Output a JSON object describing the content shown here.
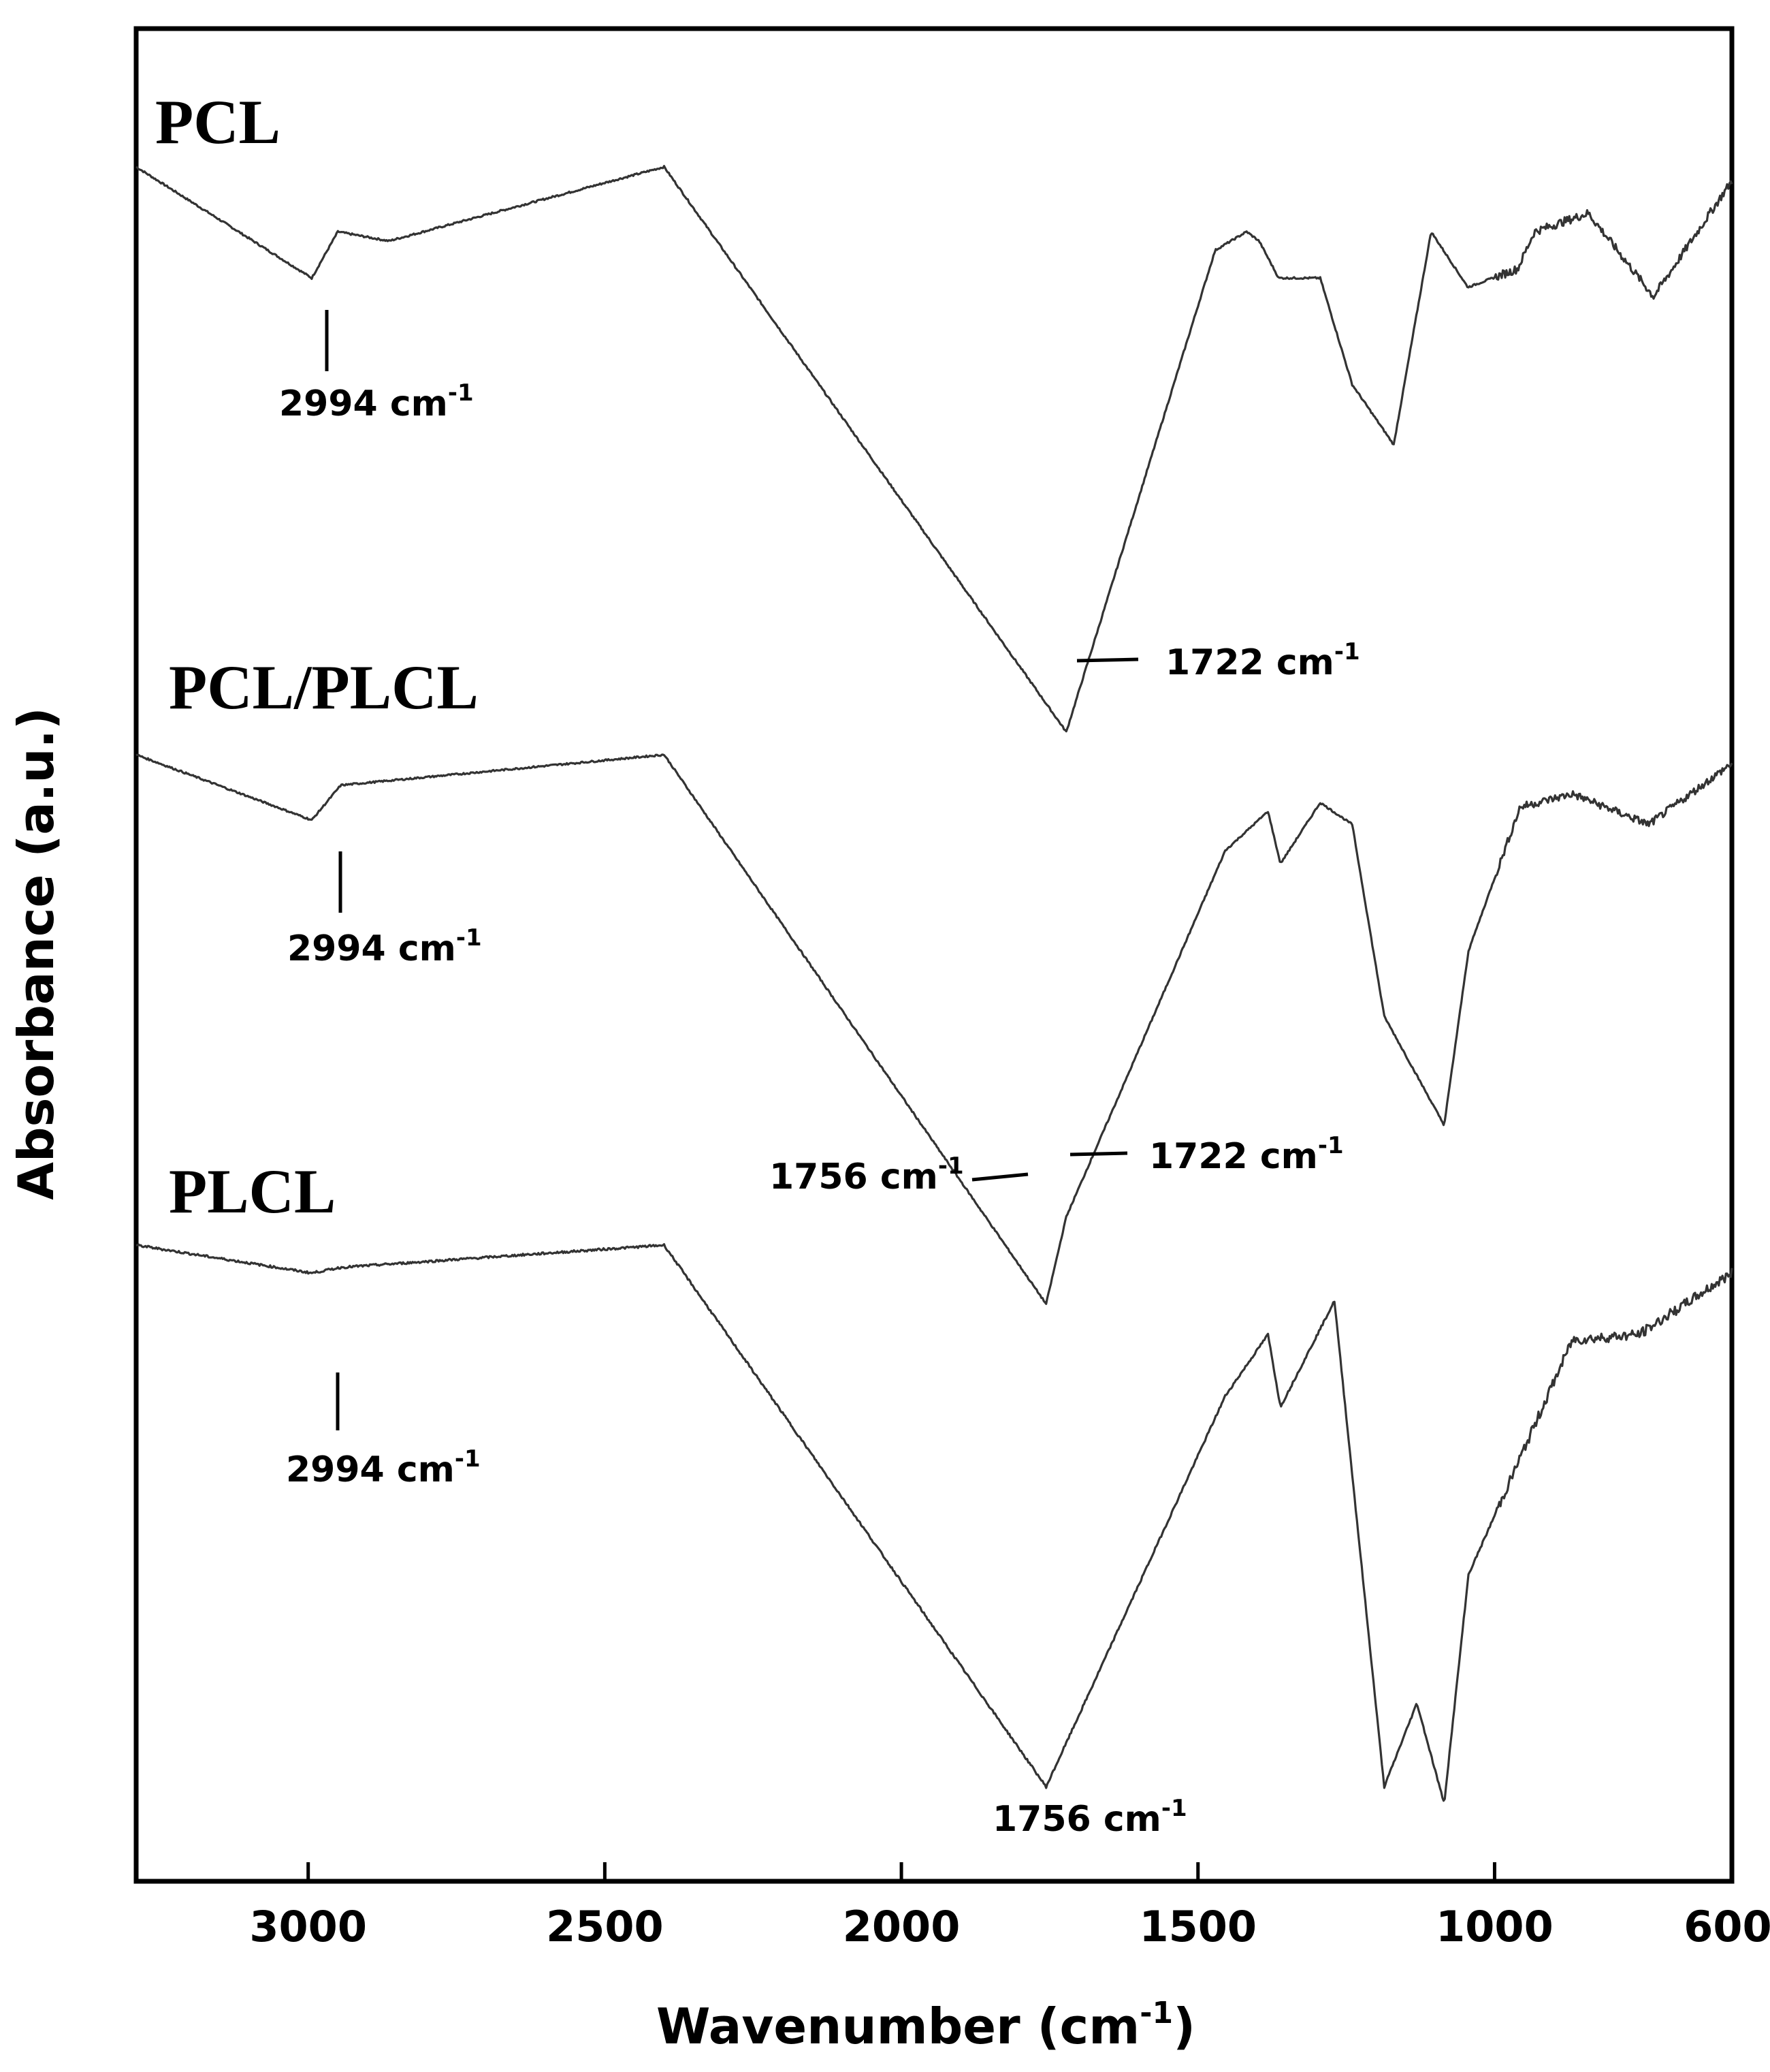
{
  "chart_data": {
    "type": "line",
    "title": "",
    "xlabel": "Wavenumber (cm",
    "xlabel_sup": "-1",
    "xlabel_close": ")",
    "ylabel": "Absorbance (a.u.)",
    "xlim": [
      3290,
      600
    ],
    "x_reversed": true,
    "xticks": [
      3000,
      2500,
      2000,
      1500,
      1000,
      600
    ],
    "xtick_labels": [
      "3000",
      "2500",
      "2000",
      "1500",
      "1000",
      "600"
    ],
    "grid": false,
    "legend": "none",
    "y_units": "arbitrary, stacked traces (absorbance bands drawn downward)",
    "series": [
      {
        "name": "PCL",
        "baseline": 1.0,
        "bands": [
          {
            "x": 3290,
            "y": 1.0
          },
          {
            "x": 2994,
            "y": 0.76
          },
          {
            "x": 2950,
            "y": 0.86
          },
          {
            "x": 2864,
            "y": 0.84
          },
          {
            "x": 2400,
            "y": 1.0
          },
          {
            "x": 1722,
            "y": -0.22
          },
          {
            "x": 1471,
            "y": 0.82
          },
          {
            "x": 1418,
            "y": 0.86
          },
          {
            "x": 1397,
            "y": 0.84
          },
          {
            "x": 1364,
            "y": 0.76
          },
          {
            "x": 1294,
            "y": 0.76
          },
          {
            "x": 1240,
            "y": 0.53
          },
          {
            "x": 1170,
            "y": 0.4
          },
          {
            "x": 1107,
            "y": 0.86
          },
          {
            "x": 1045,
            "y": 0.74
          },
          {
            "x": 961,
            "y": 0.78
          },
          {
            "x": 933,
            "y": 0.86
          },
          {
            "x": 842,
            "y": 0.9
          },
          {
            "x": 732,
            "y": 0.72
          },
          {
            "x": 600,
            "y": 0.97
          }
        ]
      },
      {
        "name": "PCL/PLCL",
        "baseline": 1.0,
        "bands": [
          {
            "x": 3290,
            "y": 1.0
          },
          {
            "x": 2994,
            "y": 0.85
          },
          {
            "x": 2945,
            "y": 0.93
          },
          {
            "x": 2400,
            "y": 1.0
          },
          {
            "x": 1756,
            "y": -0.26
          },
          {
            "x": 1722,
            "y": -0.06
          },
          {
            "x": 1454,
            "y": 0.78
          },
          {
            "x": 1382,
            "y": 0.87
          },
          {
            "x": 1361,
            "y": 0.75
          },
          {
            "x": 1294,
            "y": 0.89
          },
          {
            "x": 1240,
            "y": 0.84
          },
          {
            "x": 1186,
            "y": 0.4
          },
          {
            "x": 1085,
            "y": 0.15
          },
          {
            "x": 1044,
            "y": 0.55
          },
          {
            "x": 957,
            "y": 0.88
          },
          {
            "x": 869,
            "y": 0.91
          },
          {
            "x": 740,
            "y": 0.84
          },
          {
            "x": 600,
            "y": 0.98
          }
        ]
      },
      {
        "name": "PLCL",
        "baseline": 1.0,
        "bands": [
          {
            "x": 3290,
            "y": 1.0
          },
          {
            "x": 2994,
            "y": 0.95
          },
          {
            "x": 2945,
            "y": 0.96
          },
          {
            "x": 2400,
            "y": 1.0
          },
          {
            "x": 1756,
            "y": 0.03
          },
          {
            "x": 1454,
            "y": 0.73
          },
          {
            "x": 1382,
            "y": 0.84
          },
          {
            "x": 1361,
            "y": 0.71
          },
          {
            "x": 1270,
            "y": 0.9
          },
          {
            "x": 1186,
            "y": 0.03
          },
          {
            "x": 1131,
            "y": 0.18
          },
          {
            "x": 1085,
            "y": 0.0
          },
          {
            "x": 1044,
            "y": 0.41
          },
          {
            "x": 869,
            "y": 0.83
          },
          {
            "x": 756,
            "y": 0.84
          },
          {
            "x": 600,
            "y": 0.95
          }
        ]
      }
    ],
    "annotations": [
      {
        "series": "PCL",
        "x": 2994,
        "text": "2994 cm",
        "sup": "-1"
      },
      {
        "series": "PCL",
        "x": 1722,
        "text": "1722 cm",
        "sup": "-1"
      },
      {
        "series": "PCL/PLCL",
        "x": 2994,
        "text": "2994 cm",
        "sup": "-1"
      },
      {
        "series": "PCL/PLCL",
        "x": 1756,
        "text": "1756 cm",
        "sup": "-1"
      },
      {
        "series": "PCL/PLCL",
        "x": 1722,
        "text": "1722 cm",
        "sup": "-1"
      },
      {
        "series": "PLCL",
        "x": 2994,
        "text": "2994 cm",
        "sup": "-1"
      },
      {
        "series": "PLCL",
        "x": 1756,
        "text": "1756 cm",
        "sup": "-1"
      }
    ]
  },
  "colors": {
    "line": "#333333",
    "axis": "#000000",
    "background": "#ffffff"
  }
}
